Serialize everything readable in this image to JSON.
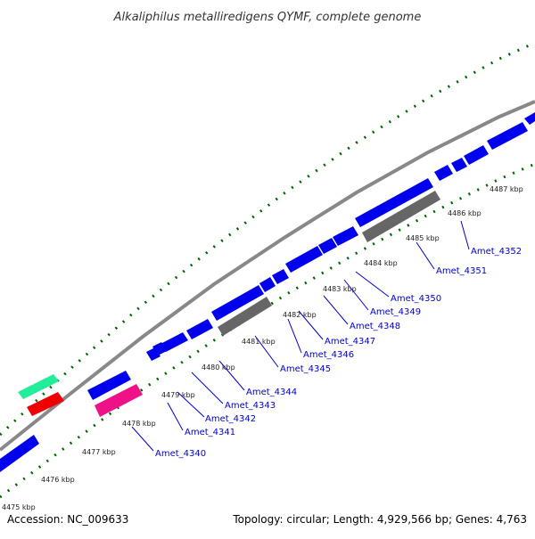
{
  "title": "Alkaliphilus metalliredigens QYMF, complete genome",
  "accession_text": "Accession: NC_009633",
  "summary_text": "Topology: circular; Length: 4,929,566 bp; Genes: 4,763",
  "colors": {
    "forward_gene": "#0000ee",
    "backbone": "#888888",
    "tick": "#006400",
    "rrna": "#666666",
    "trna": "#ee1188",
    "misc_green": "#22ee99",
    "misc_red": "#ee0000",
    "label": "#0000cc"
  },
  "kbp_labels": [
    "4475 kbp",
    "4476 kbp",
    "4477 kbp",
    "4478 kbp",
    "4479 kbp",
    "4480 kbp",
    "4481 kbp",
    "4482 kbp",
    "4483 kbp",
    "4484 kbp",
    "4485 kbp",
    "4486 kbp",
    "4487 kbp"
  ],
  "gene_labels": [
    "Amet_4340",
    "Amet_4341",
    "Amet_4342",
    "Amet_4343",
    "Amet_4344",
    "Amet_4345",
    "Amet_4346",
    "Amet_4347",
    "Amet_4348",
    "Amet_4349",
    "Amet_4350",
    "Amet_4351",
    "Amet_4352"
  ]
}
